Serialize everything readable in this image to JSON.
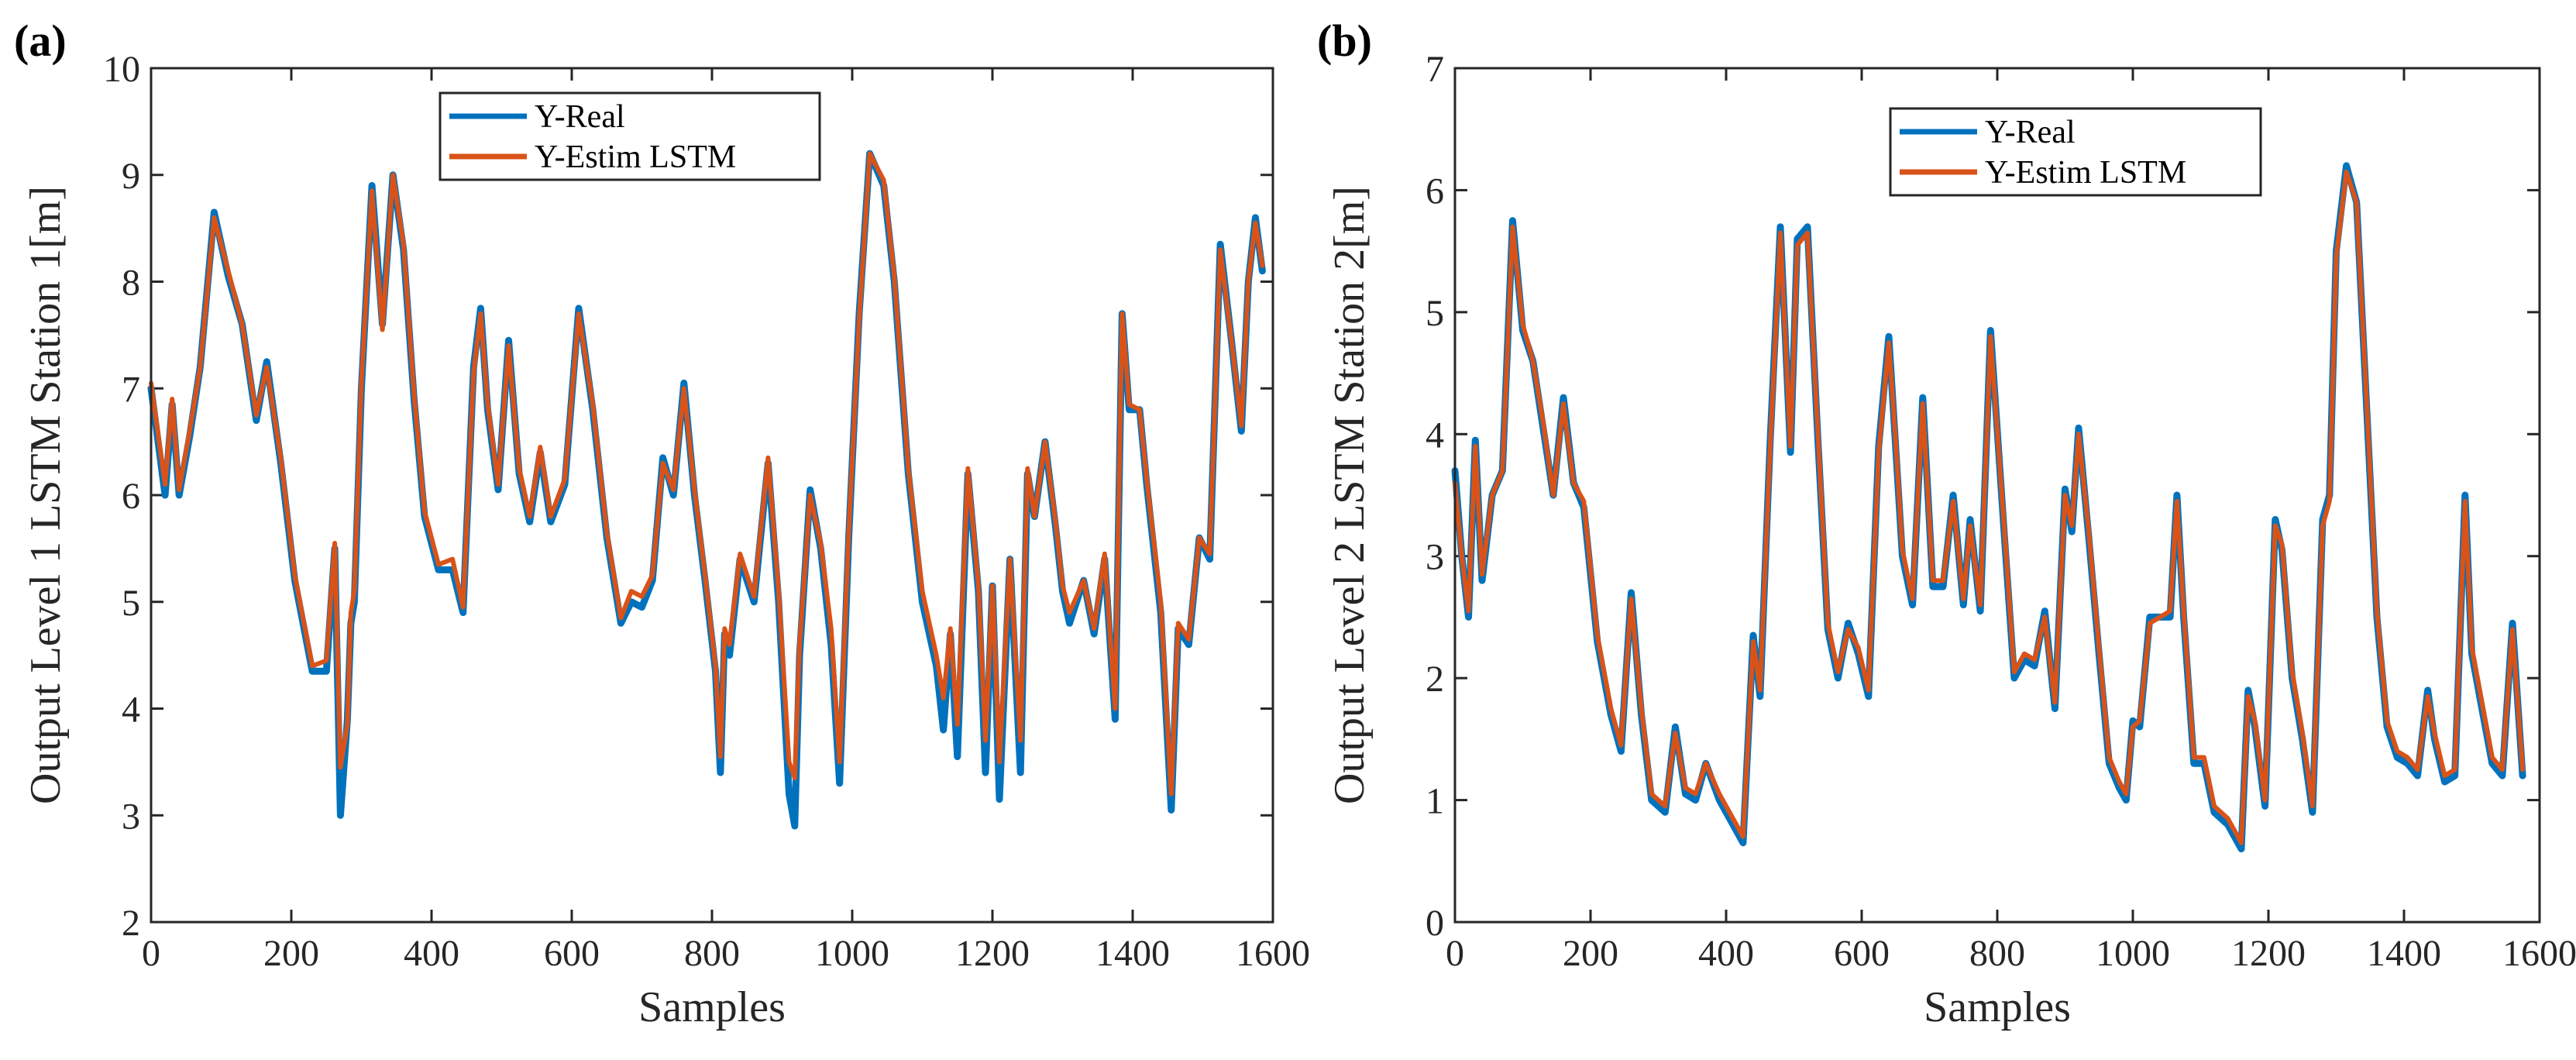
{
  "figure": {
    "panels": [
      {
        "label": "(a)"
      },
      {
        "label": "(b)"
      }
    ]
  },
  "chart_data": [
    {
      "type": "line",
      "panel": "(a)",
      "title": "",
      "xlabel": "Samples",
      "ylabel": "Output Level 1 LSTM Station 1[m]",
      "xlim": [
        0,
        1600
      ],
      "ylim": [
        2,
        10
      ],
      "xticks": [
        0,
        200,
        400,
        600,
        800,
        1000,
        1200,
        1400,
        1600
      ],
      "yticks": [
        2,
        3,
        4,
        5,
        6,
        7,
        8,
        9,
        10
      ],
      "grid": false,
      "legend_location": "top-center",
      "series": [
        {
          "name": "Y-Real",
          "color": "#0072BD"
        },
        {
          "name": "Y-Estim LSTM",
          "color": "#D95319"
        }
      ],
      "x": [
        0,
        20,
        30,
        40,
        55,
        70,
        90,
        110,
        130,
        150,
        165,
        185,
        205,
        230,
        250,
        262,
        270,
        280,
        285,
        290,
        300,
        315,
        330,
        345,
        360,
        375,
        390,
        410,
        430,
        445,
        460,
        470,
        480,
        495,
        510,
        525,
        540,
        555,
        570,
        590,
        610,
        630,
        650,
        670,
        685,
        700,
        715,
        730,
        745,
        760,
        775,
        790,
        805,
        812,
        818,
        825,
        840,
        860,
        880,
        895,
        910,
        918,
        925,
        940,
        955,
        970,
        982,
        995,
        1010,
        1025,
        1045,
        1060,
        1080,
        1100,
        1120,
        1130,
        1140,
        1150,
        1165,
        1180,
        1190,
        1200,
        1210,
        1225,
        1240,
        1250,
        1260,
        1275,
        1290,
        1300,
        1310,
        1330,
        1345,
        1360,
        1375,
        1385,
        1395,
        1410,
        1420,
        1440,
        1455,
        1465,
        1480,
        1495,
        1510,
        1525,
        1540,
        1555,
        1565,
        1575,
        1585
      ],
      "real": [
        7.0,
        6.0,
        6.85,
        6.0,
        6.55,
        7.2,
        8.65,
        8.05,
        7.6,
        6.7,
        7.25,
        6.3,
        5.2,
        4.35,
        4.35,
        5.5,
        3.0,
        3.9,
        4.8,
        5.0,
        7.0,
        8.9,
        7.6,
        9.0,
        8.3,
        6.9,
        5.8,
        5.3,
        5.3,
        4.9,
        7.2,
        7.75,
        6.8,
        6.05,
        7.45,
        6.2,
        5.75,
        6.4,
        5.75,
        6.1,
        7.75,
        6.8,
        5.6,
        4.8,
        5.0,
        4.95,
        5.2,
        6.35,
        6.0,
        7.05,
        6.0,
        5.2,
        4.35,
        3.4,
        4.7,
        4.5,
        5.4,
        5.0,
        6.3,
        5.0,
        3.2,
        2.9,
        4.5,
        6.05,
        5.5,
        4.6,
        3.3,
        5.6,
        7.7,
        9.2,
        8.9,
        8.0,
        6.2,
        5.0,
        4.4,
        3.8,
        4.7,
        3.55,
        6.2,
        5.1,
        3.4,
        5.15,
        3.15,
        5.4,
        3.4,
        6.2,
        5.8,
        6.5,
        5.7,
        5.1,
        4.8,
        5.2,
        4.7,
        5.4,
        3.9,
        7.7,
        6.8,
        6.8,
        6.1,
        4.9,
        3.05,
        4.75,
        4.6,
        5.6,
        5.4,
        8.35,
        7.5,
        6.6,
        8.0,
        8.6,
        8.1
      ],
      "estim": [
        7.05,
        6.1,
        6.9,
        6.05,
        6.6,
        7.2,
        8.6,
        8.1,
        7.6,
        6.75,
        7.2,
        6.35,
        5.25,
        4.4,
        4.45,
        5.55,
        3.45,
        3.85,
        4.9,
        5.1,
        7.05,
        8.85,
        7.55,
        9.0,
        8.35,
        6.95,
        5.85,
        5.35,
        5.4,
        4.95,
        7.15,
        7.7,
        6.85,
        6.1,
        7.4,
        6.25,
        5.8,
        6.45,
        5.8,
        6.15,
        7.7,
        6.85,
        5.65,
        4.85,
        5.1,
        5.05,
        5.25,
        6.3,
        6.05,
        7.0,
        6.05,
        5.25,
        4.4,
        3.55,
        4.75,
        4.6,
        5.45,
        5.05,
        6.35,
        5.1,
        3.5,
        3.35,
        4.6,
        6.0,
        5.55,
        4.75,
        3.5,
        5.65,
        7.65,
        9.2,
        8.95,
        8.05,
        6.25,
        5.1,
        4.5,
        4.1,
        4.75,
        3.85,
        6.25,
        5.15,
        3.7,
        5.15,
        3.5,
        5.4,
        3.7,
        6.25,
        5.8,
        6.5,
        5.75,
        5.15,
        4.9,
        5.2,
        4.75,
        5.45,
        4.0,
        7.7,
        6.85,
        6.8,
        6.15,
        5.0,
        3.2,
        4.8,
        4.65,
        5.6,
        5.45,
        8.3,
        7.5,
        6.65,
        8.0,
        8.55,
        8.15
      ]
    },
    {
      "type": "line",
      "panel": "(b)",
      "title": "",
      "xlabel": "Samples",
      "ylabel": "Output Level 2 LSTM Station 2[m]",
      "xlim": [
        0,
        1600
      ],
      "ylim": [
        0,
        7
      ],
      "xticks": [
        0,
        200,
        400,
        600,
        800,
        1000,
        1200,
        1400,
        1600
      ],
      "yticks": [
        0,
        1,
        2,
        3,
        4,
        5,
        6,
        7
      ],
      "grid": false,
      "legend_location": "top-right",
      "series": [
        {
          "name": "Y-Real",
          "color": "#0072BD"
        },
        {
          "name": "Y-Estim LSTM",
          "color": "#D95319"
        }
      ],
      "x": [
        0,
        10,
        20,
        30,
        40,
        55,
        70,
        85,
        100,
        115,
        130,
        145,
        160,
        175,
        190,
        210,
        230,
        245,
        260,
        275,
        290,
        310,
        325,
        340,
        355,
        370,
        390,
        410,
        425,
        440,
        450,
        465,
        480,
        495,
        505,
        520,
        535,
        550,
        565,
        580,
        595,
        610,
        625,
        640,
        650,
        660,
        675,
        690,
        705,
        720,
        735,
        750,
        760,
        775,
        790,
        810,
        825,
        840,
        855,
        870,
        885,
        900,
        910,
        920,
        935,
        950,
        965,
        980,
        990,
        1000,
        1010,
        1025,
        1040,
        1055,
        1065,
        1075,
        1090,
        1105,
        1120,
        1140,
        1160,
        1170,
        1180,
        1195,
        1210,
        1220,
        1235,
        1250,
        1265,
        1280,
        1290,
        1300,
        1315,
        1330,
        1345,
        1360,
        1375,
        1390,
        1405,
        1420,
        1435,
        1445,
        1460,
        1475,
        1490,
        1500,
        1515,
        1530,
        1545,
        1560,
        1575
      ],
      "real": [
        3.7,
        3.0,
        2.5,
        3.95,
        2.8,
        3.5,
        3.7,
        5.75,
        4.85,
        4.6,
        4.05,
        3.5,
        4.3,
        3.6,
        3.4,
        2.3,
        1.7,
        1.4,
        2.7,
        1.7,
        1.0,
        0.9,
        1.6,
        1.05,
        1.0,
        1.3,
        1.0,
        0.8,
        0.65,
        2.35,
        1.85,
        3.95,
        5.7,
        3.85,
        5.6,
        5.7,
        4.0,
        2.4,
        2.0,
        2.45,
        2.2,
        1.85,
        3.9,
        4.8,
        3.9,
        3.0,
        2.6,
        4.3,
        2.75,
        2.75,
        3.5,
        2.6,
        3.3,
        2.55,
        4.85,
        3.2,
        2.0,
        2.15,
        2.1,
        2.55,
        1.75,
        3.55,
        3.2,
        4.05,
        3.15,
        2.2,
        1.3,
        1.1,
        1.0,
        1.65,
        1.6,
        2.5,
        2.5,
        2.5,
        3.5,
        2.5,
        1.3,
        1.3,
        0.9,
        0.8,
        0.6,
        1.9,
        1.6,
        0.95,
        3.3,
        3.05,
        2.0,
        1.5,
        0.9,
        3.3,
        3.5,
        5.5,
        6.2,
        5.9,
        4.2,
        2.5,
        1.6,
        1.35,
        1.3,
        1.2,
        1.9,
        1.5,
        1.15,
        1.2,
        3.5,
        2.2,
        1.75,
        1.3,
        1.2,
        2.45,
        1.2
      ],
      "estim": [
        3.6,
        3.0,
        2.55,
        3.9,
        2.85,
        3.5,
        3.7,
        5.7,
        4.9,
        4.6,
        4.1,
        3.5,
        4.25,
        3.6,
        3.45,
        2.35,
        1.75,
        1.45,
        2.65,
        1.75,
        1.05,
        0.95,
        1.55,
        1.1,
        1.05,
        1.3,
        1.05,
        0.85,
        0.7,
        2.3,
        1.9,
        3.9,
        5.65,
        3.9,
        5.55,
        5.65,
        4.05,
        2.45,
        2.05,
        2.4,
        2.25,
        1.9,
        3.85,
        4.75,
        3.95,
        3.05,
        2.65,
        4.25,
        2.8,
        2.8,
        3.45,
        2.65,
        3.25,
        2.6,
        4.8,
        3.25,
        2.05,
        2.2,
        2.15,
        2.5,
        1.8,
        3.5,
        3.25,
        4.0,
        3.2,
        2.25,
        1.35,
        1.15,
        1.05,
        1.6,
        1.65,
        2.45,
        2.5,
        2.55,
        3.45,
        2.55,
        1.35,
        1.35,
        0.95,
        0.85,
        0.65,
        1.85,
        1.65,
        1.0,
        3.25,
        3.1,
        2.05,
        1.55,
        0.95,
        3.25,
        3.45,
        5.45,
        6.15,
        5.9,
        4.25,
        2.55,
        1.65,
        1.4,
        1.35,
        1.25,
        1.85,
        1.55,
        1.2,
        1.25,
        3.45,
        2.25,
        1.8,
        1.35,
        1.25,
        2.4,
        1.25
      ]
    }
  ]
}
